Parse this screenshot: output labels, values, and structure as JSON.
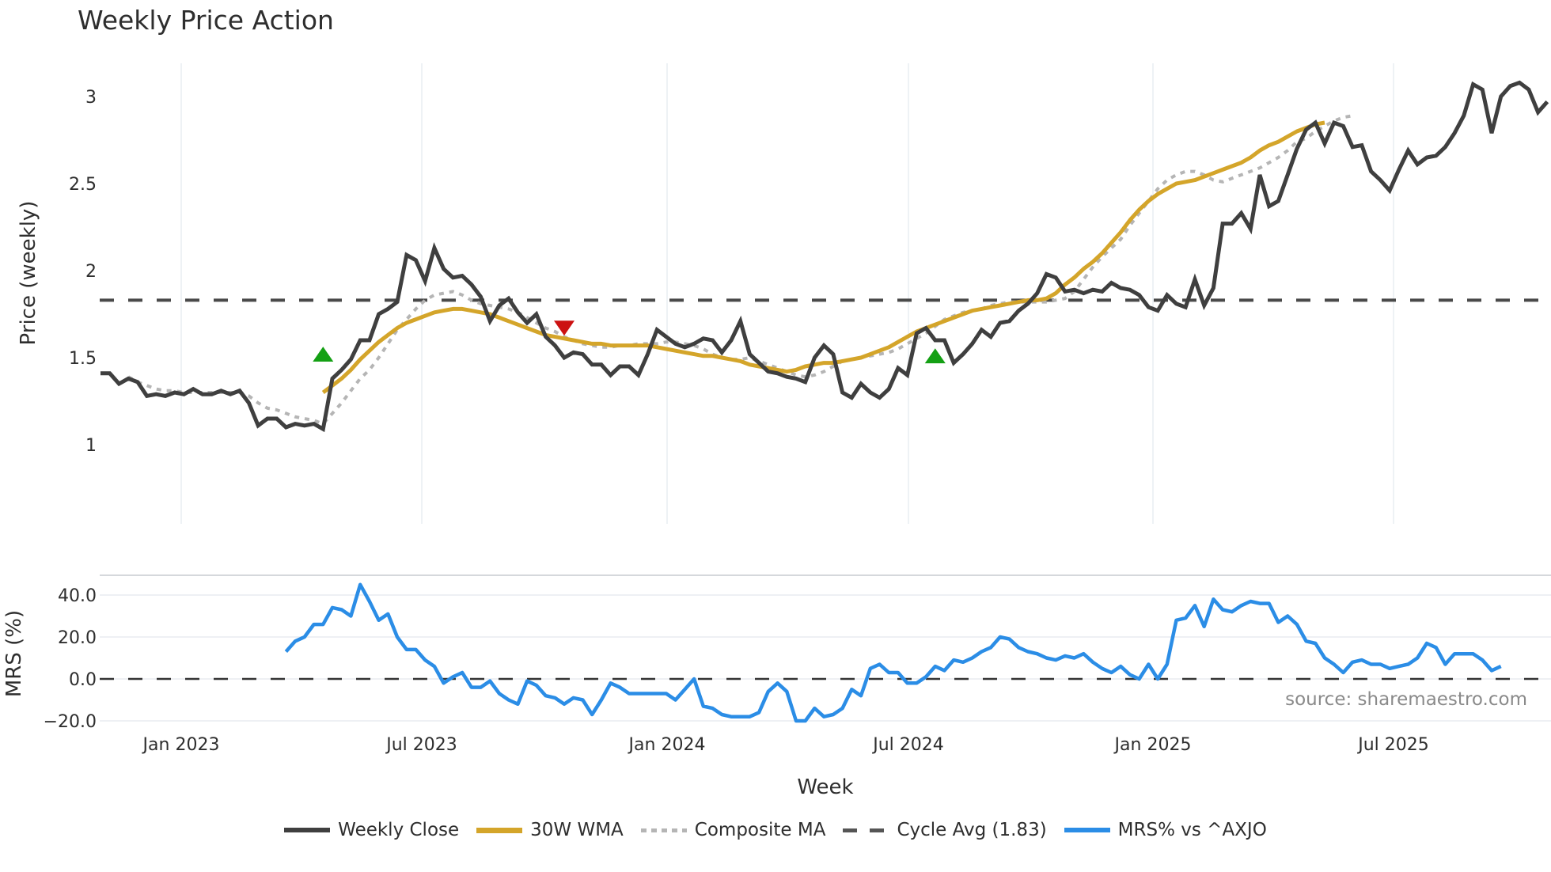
{
  "title": "Weekly Price Action",
  "source_note": "source: sharemaestro.com",
  "legend": [
    {
      "label": "Weekly Close",
      "color": "#3f3f3f",
      "style": "solid"
    },
    {
      "label": "30W WMA",
      "color": "#d4a52a",
      "style": "solid"
    },
    {
      "label": "Composite MA",
      "color": "#b5b5b5",
      "style": "dotted"
    },
    {
      "label": "Cycle Avg (1.83)",
      "color": "#555555",
      "style": "dashed"
    },
    {
      "label": "MRS% vs ^AXJO",
      "color": "#2b8de6",
      "style": "solid"
    }
  ],
  "chart_data": [
    {
      "type": "line",
      "title": "Weekly Price Action",
      "xlabel": "",
      "ylabel": "Price (weekly)",
      "ylim": [
        0.98,
        3.2
      ],
      "yticks": [
        1,
        1.5,
        2,
        2.5,
        3
      ],
      "xticks": [
        "Jan 2023",
        "Jul 2023",
        "Jan 2024",
        "Jul 2024",
        "Jan 2025",
        "Jul 2025"
      ],
      "grid": "vertical",
      "x_start_week_index": 0,
      "week_spacing_note": "weekly points from ~Nov 2022 to ~Oct 2025",
      "series": [
        {
          "name": "Weekly Close",
          "color": "#3f3f3f",
          "values": [
            1.41,
            1.41,
            1.35,
            1.38,
            1.36,
            1.28,
            1.29,
            1.28,
            1.3,
            1.29,
            1.32,
            1.29,
            1.29,
            1.31,
            1.29,
            1.31,
            1.24,
            1.11,
            1.15,
            1.15,
            1.1,
            1.12,
            1.11,
            1.12,
            1.09,
            1.38,
            1.43,
            1.49,
            1.6,
            1.6,
            1.75,
            1.78,
            1.82,
            2.09,
            2.06,
            1.94,
            2.13,
            2.01,
            1.96,
            1.97,
            1.92,
            1.85,
            1.71,
            1.8,
            1.84,
            1.76,
            1.7,
            1.75,
            1.62,
            1.57,
            1.5,
            1.53,
            1.52,
            1.46,
            1.46,
            1.4,
            1.45,
            1.45,
            1.4,
            1.52,
            1.66,
            1.62,
            1.58,
            1.56,
            1.58,
            1.61,
            1.6,
            1.53,
            1.6,
            1.71,
            1.52,
            1.47,
            1.42,
            1.41,
            1.39,
            1.38,
            1.36,
            1.5,
            1.57,
            1.52,
            1.3,
            1.27,
            1.35,
            1.3,
            1.27,
            1.32,
            1.44,
            1.4,
            1.64,
            1.67,
            1.6,
            1.6,
            1.47,
            1.52,
            1.58,
            1.66,
            1.62,
            1.7,
            1.71,
            1.77,
            1.81,
            1.87,
            1.98,
            1.96,
            1.88,
            1.89,
            1.87,
            1.89,
            1.88,
            1.93,
            1.9,
            1.89,
            1.86,
            1.79,
            1.77,
            1.86,
            1.81,
            1.79,
            1.95,
            1.8,
            1.9,
            2.27,
            2.27,
            2.33,
            2.24,
            2.55,
            2.37,
            2.4,
            2.55,
            2.7,
            2.81,
            2.85,
            2.73,
            2.85,
            2.83,
            2.71,
            2.72,
            2.57,
            2.52,
            2.46,
            2.58,
            2.69,
            2.61,
            2.65,
            2.66,
            2.71,
            2.79,
            2.89,
            3.07,
            3.04,
            2.79,
            3.0,
            3.06,
            3.08,
            3.04,
            2.91,
            2.97
          ]
        },
        {
          "name": "30W WMA",
          "color": "#d4a52a",
          "start_index": 24,
          "values": [
            1.3,
            1.34,
            1.38,
            1.43,
            1.49,
            1.54,
            1.59,
            1.63,
            1.67,
            1.7,
            1.72,
            1.74,
            1.76,
            1.77,
            1.78,
            1.78,
            1.77,
            1.76,
            1.75,
            1.73,
            1.71,
            1.69,
            1.67,
            1.65,
            1.63,
            1.62,
            1.61,
            1.6,
            1.59,
            1.58,
            1.58,
            1.57,
            1.57,
            1.57,
            1.57,
            1.57,
            1.56,
            1.55,
            1.54,
            1.53,
            1.52,
            1.51,
            1.51,
            1.5,
            1.49,
            1.48,
            1.46,
            1.45,
            1.44,
            1.43,
            1.42,
            1.43,
            1.45,
            1.46,
            1.47,
            1.47,
            1.48,
            1.49,
            1.5,
            1.52,
            1.54,
            1.56,
            1.59,
            1.62,
            1.65,
            1.67,
            1.69,
            1.71,
            1.73,
            1.75,
            1.77,
            1.78,
            1.79,
            1.8,
            1.81,
            1.82,
            1.83,
            1.83,
            1.84,
            1.87,
            1.92,
            1.96,
            2.01,
            2.05,
            2.1,
            2.16,
            2.22,
            2.29,
            2.35,
            2.4,
            2.44,
            2.47,
            2.5,
            2.51,
            2.52,
            2.54,
            2.56,
            2.58,
            2.6,
            2.62,
            2.65,
            2.69,
            2.72,
            2.74,
            2.77,
            2.8,
            2.82,
            2.84,
            2.85
          ]
        },
        {
          "name": "Composite MA",
          "color": "#b5b5b5",
          "start_index": 3,
          "values": [
            1.39,
            1.36,
            1.34,
            1.32,
            1.31,
            1.31,
            1.3,
            1.3,
            1.3,
            1.3,
            1.3,
            1.3,
            1.3,
            1.28,
            1.24,
            1.21,
            1.2,
            1.18,
            1.16,
            1.15,
            1.14,
            1.12,
            1.18,
            1.24,
            1.31,
            1.38,
            1.43,
            1.5,
            1.58,
            1.66,
            1.72,
            1.78,
            1.83,
            1.86,
            1.87,
            1.88,
            1.86,
            1.83,
            1.81,
            1.8,
            1.79,
            1.78,
            1.76,
            1.73,
            1.7,
            1.67,
            1.65,
            1.62,
            1.6,
            1.58,
            1.57,
            1.56,
            1.56,
            1.57,
            1.57,
            1.58,
            1.58,
            1.58,
            1.59,
            1.59,
            1.58,
            1.57,
            1.55,
            1.52,
            1.5,
            1.49,
            1.49,
            1.5,
            1.48,
            1.46,
            1.44,
            1.42,
            1.4,
            1.39,
            1.4,
            1.42,
            1.45,
            1.48,
            1.49,
            1.5,
            1.51,
            1.52,
            1.53,
            1.55,
            1.58,
            1.61,
            1.64,
            1.68,
            1.72,
            1.74,
            1.76,
            1.77,
            1.78,
            1.8,
            1.81,
            1.82,
            1.82,
            1.82,
            1.82,
            1.82,
            1.83,
            1.84,
            1.88,
            1.95,
            2.02,
            2.08,
            2.13,
            2.18,
            2.26,
            2.33,
            2.4,
            2.47,
            2.52,
            2.55,
            2.57,
            2.57,
            2.55,
            2.52,
            2.51,
            2.53,
            2.55,
            2.57,
            2.59,
            2.62,
            2.65,
            2.69,
            2.74,
            2.76,
            2.8,
            2.83,
            2.86,
            2.88,
            2.89
          ]
        },
        {
          "name": "Cycle Avg (1.83)",
          "color": "#555555",
          "constant": 1.83
        }
      ],
      "markers": [
        {
          "type": "buy",
          "shape": "triangle-up",
          "color": "#14a014",
          "week_index": 24,
          "value": 1.51
        },
        {
          "type": "sell",
          "shape": "triangle-down",
          "color": "#cc1111",
          "week_index": 50,
          "value": 1.68
        },
        {
          "type": "buy",
          "shape": "triangle-up",
          "color": "#14a014",
          "week_index": 90,
          "value": 1.5
        }
      ]
    },
    {
      "type": "line",
      "title": "",
      "xlabel": "Week",
      "ylabel": "MRS (%)",
      "ylim": [
        -22,
        50
      ],
      "yticks": [
        -20.0,
        0.0,
        20.0,
        40.0
      ],
      "xticks": [
        "Jan 2023",
        "Jul 2023",
        "Jan 2024",
        "Jul 2024",
        "Jan 2025",
        "Jul 2025"
      ],
      "series": [
        {
          "name": "MRS% vs ^AXJO",
          "color": "#2b8de6",
          "start_index": 20,
          "values": [
            13,
            18,
            20,
            26,
            26,
            34,
            33,
            30,
            45,
            37,
            28,
            31,
            20,
            14,
            14,
            9,
            6,
            -2,
            1,
            3,
            -4,
            -4,
            -1,
            -7,
            -10,
            -12,
            -1,
            -3,
            -8,
            -9,
            -12,
            -9,
            -10,
            -17,
            -10,
            -2,
            -4,
            -7,
            -7,
            -7,
            -7,
            -7,
            -10,
            -5,
            0,
            -13,
            -14,
            -17,
            -18,
            -18,
            -18,
            -16,
            -6,
            -2,
            -6,
            -20,
            -20,
            -14,
            -18,
            -17,
            -14,
            -5,
            -8,
            5,
            7,
            3,
            3,
            -2,
            -2,
            1,
            6,
            4,
            9,
            8,
            10,
            13,
            15,
            20,
            19,
            15,
            13,
            12,
            10,
            9,
            11,
            10,
            12,
            8,
            5,
            3,
            6,
            2,
            0,
            7,
            0,
            7,
            28,
            29,
            35,
            25,
            38,
            33,
            32,
            35,
            37,
            36,
            36,
            27,
            30,
            26,
            18,
            17,
            10,
            7,
            3,
            8,
            9,
            7,
            7,
            5,
            6,
            7,
            10,
            17,
            15,
            7,
            12,
            12,
            12,
            9,
            4,
            6
          ]
        }
      ],
      "reference_lines": [
        {
          "value": 0.0,
          "style": "dashed",
          "color": "#333333"
        }
      ],
      "annotation": "source: sharemaestro.com"
    }
  ]
}
